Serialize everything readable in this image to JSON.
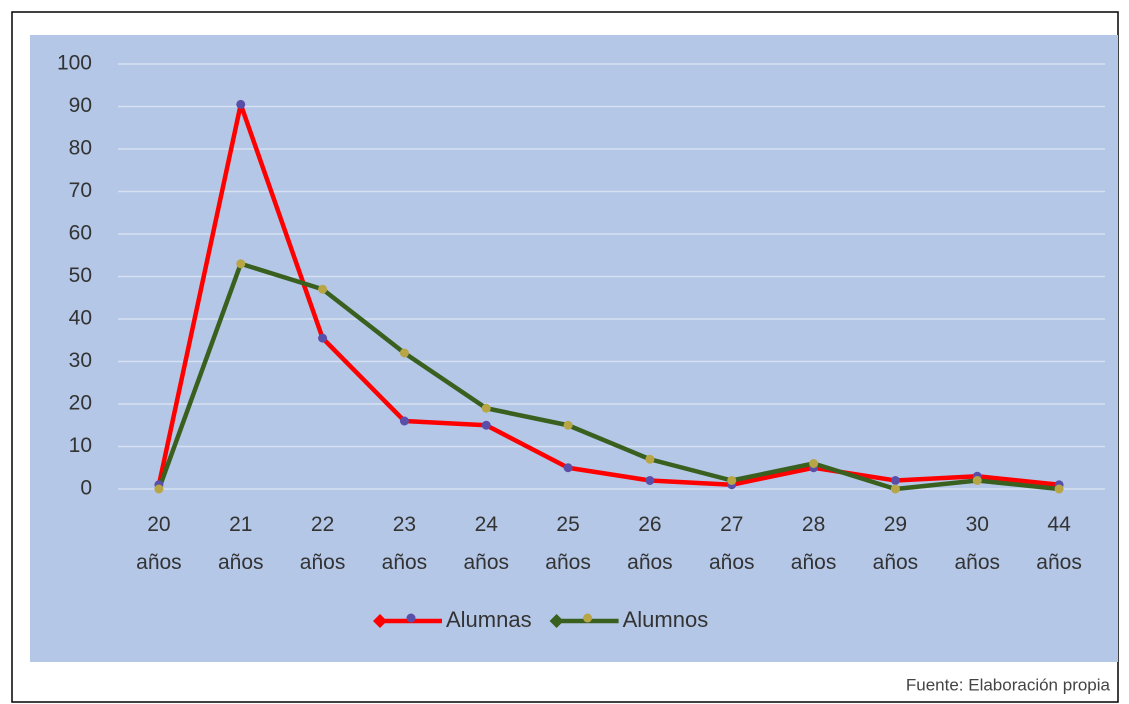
{
  "chart_data": {
    "type": "line",
    "categories": [
      "20 años",
      "21 años",
      "22 años",
      "23 años",
      "24 años",
      "25 años",
      "26 años",
      "27 años",
      "28 años",
      "29 años",
      "30 años",
      "44 años"
    ],
    "series": [
      {
        "name": "Alumnas",
        "color": "#ff0000",
        "marker_color": "#5a4fa8",
        "values": [
          1,
          90.5,
          35.5,
          16,
          15,
          5,
          2,
          1,
          5,
          2,
          3,
          1
        ]
      },
      {
        "name": "Alumnos",
        "color": "#3a6020",
        "marker_color": "#b8a646",
        "values": [
          0,
          53,
          47,
          32,
          19,
          15,
          7,
          2,
          6,
          0,
          2,
          0
        ]
      }
    ],
    "ylim": [
      0,
      100
    ],
    "yticks": [
      0,
      10,
      20,
      30,
      40,
      50,
      60,
      70,
      80,
      90,
      100
    ],
    "grid": true,
    "legend": "bottom",
    "source": "Fuente: Elaboración propia"
  }
}
